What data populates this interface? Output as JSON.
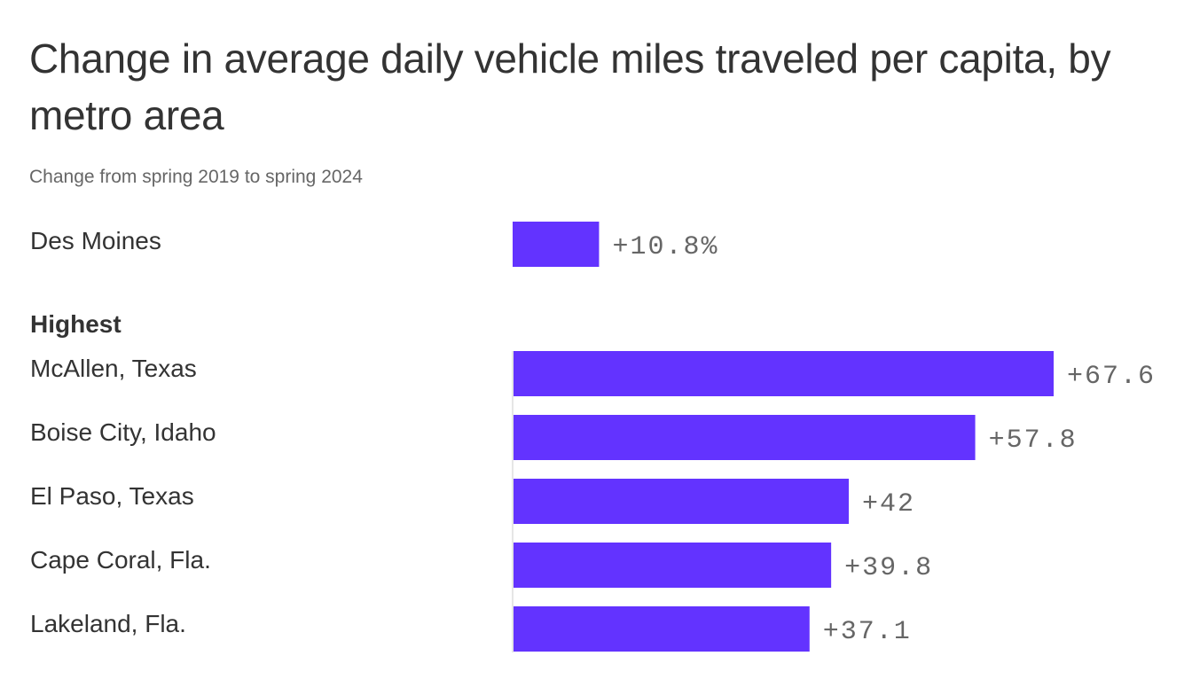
{
  "chart_data": {
    "type": "bar",
    "orientation": "horizontal",
    "title": "Change in average daily vehicle miles traveled per capita, by metro area",
    "subtitle": "Change from spring 2019 to spring 2024",
    "unit": "%",
    "bar_color": "#6333FF",
    "label_color": "#666666",
    "xlim": [
      0,
      67.6
    ],
    "highlight": {
      "category": "Des Moines",
      "value": 10.8,
      "label": "+10.8%"
    },
    "group_label": "Highest",
    "categories": [
      "McAllen, Texas",
      "Boise City, Idaho",
      "El Paso, Texas",
      "Cape Coral, Fla.",
      "Lakeland, Fla."
    ],
    "values": [
      67.6,
      57.8,
      42,
      39.8,
      37.1
    ],
    "value_labels": [
      "+67.6",
      "+57.8",
      "+42",
      "+39.8",
      "+37.1"
    ]
  }
}
